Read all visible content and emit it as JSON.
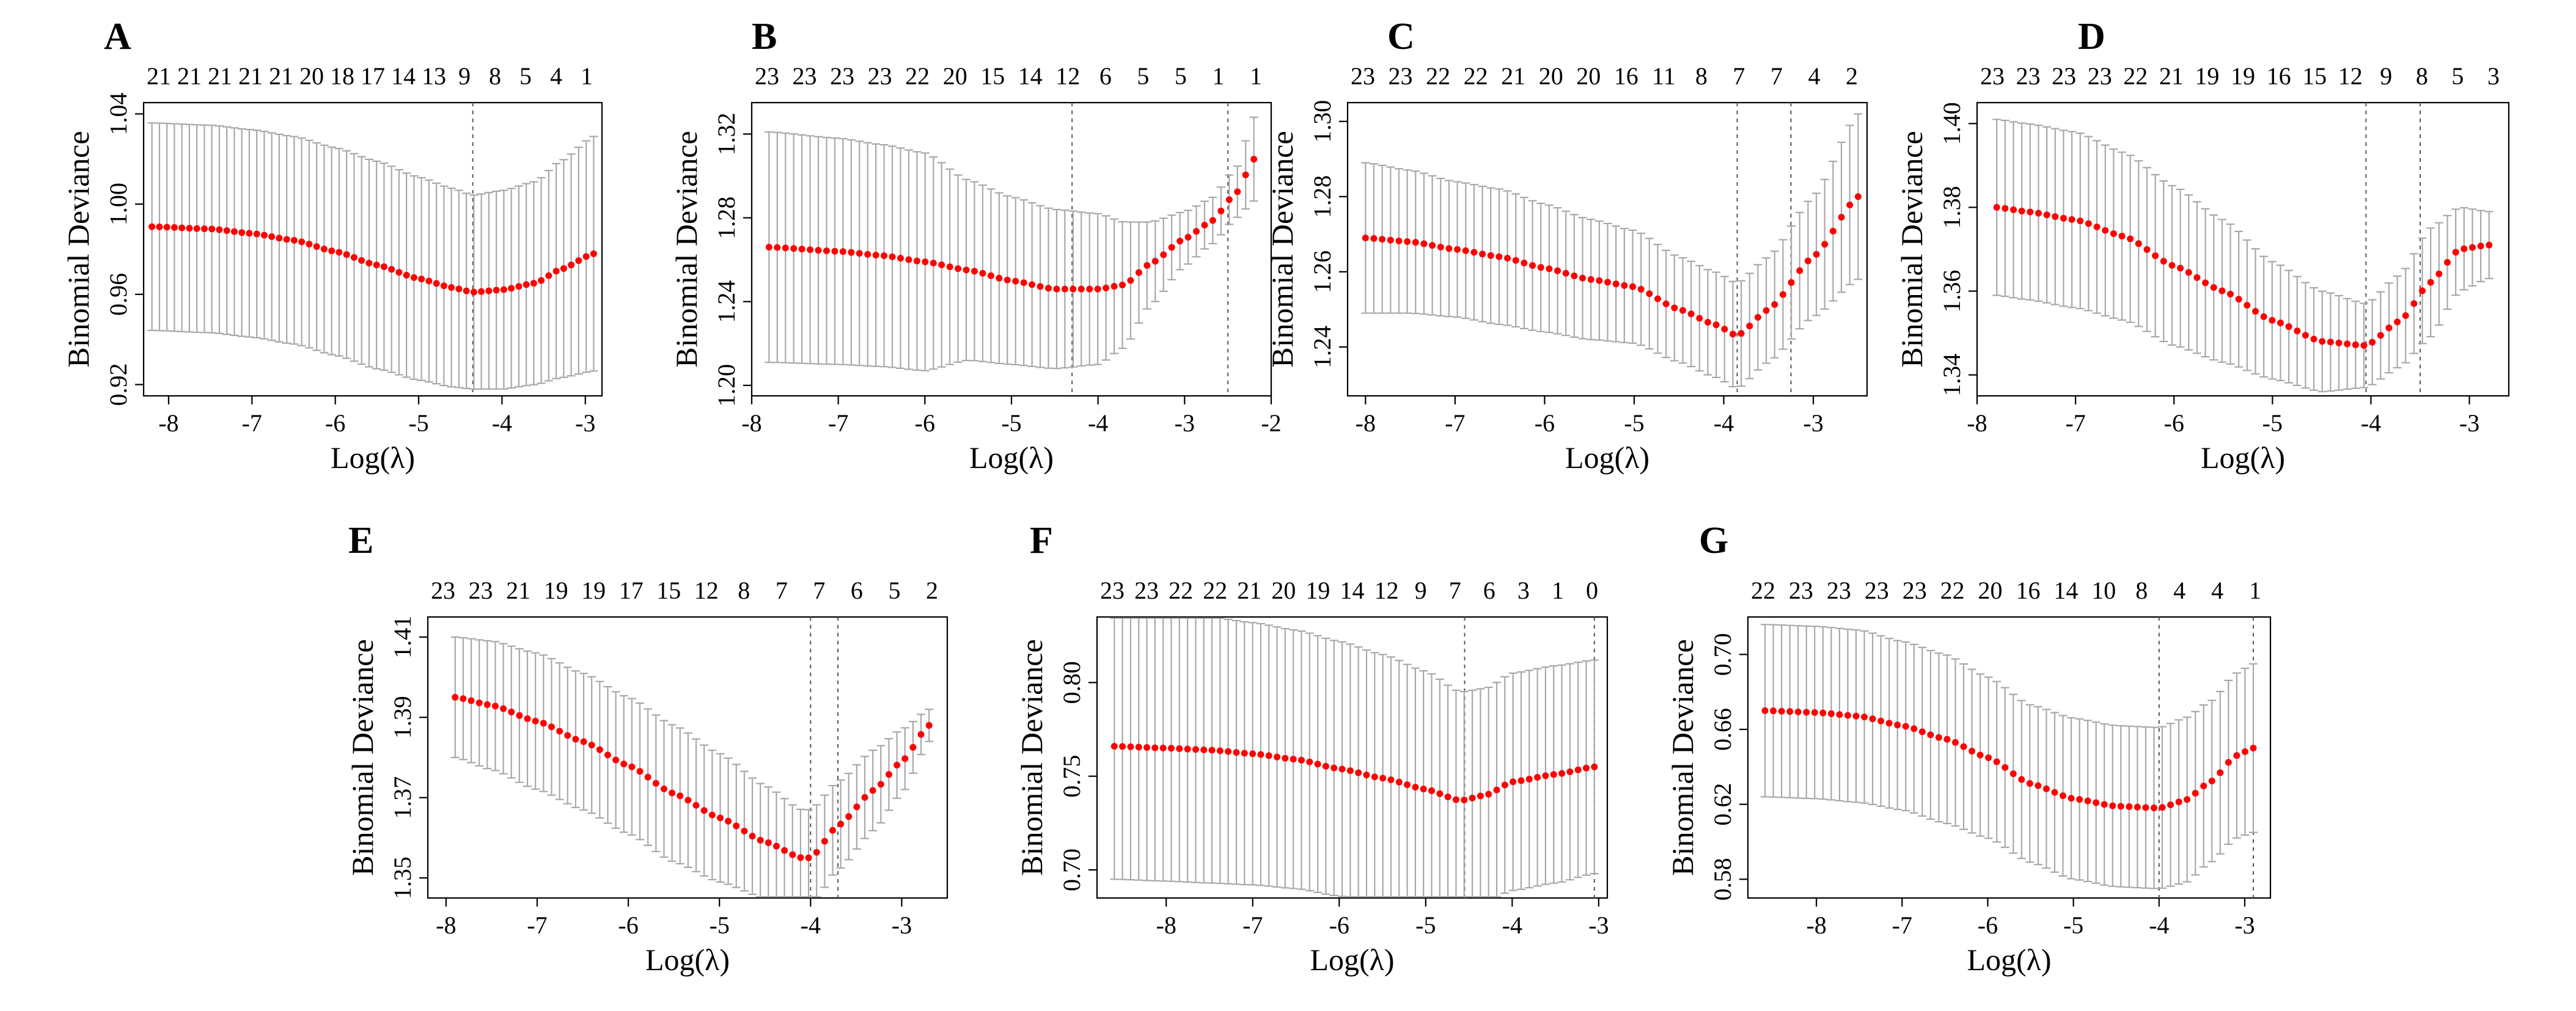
{
  "colors": {
    "points": "#ff0000",
    "error_bars": "#a8a8a8",
    "frame": "#000000"
  },
  "chart_data": [
    {
      "panel": "A",
      "type": "scatter",
      "xlabel": "Log(λ)",
      "ylabel": "Binomial Deviance",
      "xlim": [
        -8.3,
        -2.8
      ],
      "ylim": [
        0.915,
        1.045
      ],
      "xticks": [
        -8,
        -7,
        -6,
        -5,
        -4,
        -3
      ],
      "yticks": [
        0.92,
        0.96,
        1.0,
        1.04
      ],
      "ytick_labels": [
        "0.92",
        "0.96",
        "1.00",
        "1.04"
      ],
      "top_counts": [
        "21",
        "21",
        "21",
        "21",
        "21",
        "20",
        "18",
        "17",
        "14",
        "13",
        "9",
        "8",
        "5",
        "4",
        "1"
      ],
      "vlines": [
        -4.35
      ],
      "curve": {
        "x": [
          -8.2,
          -7.5,
          -7.0,
          -6.5,
          -6.0,
          -5.5,
          -5.0,
          -4.6,
          -4.35,
          -4.0,
          -3.6,
          -3.3,
          -2.9
        ],
        "y": [
          0.99,
          0.989,
          0.987,
          0.984,
          0.979,
          0.973,
          0.967,
          0.963,
          0.961,
          0.962,
          0.965,
          0.971,
          0.978
        ],
        "se": [
          0.046,
          0.046,
          0.046,
          0.046,
          0.046,
          0.046,
          0.045,
          0.044,
          0.043,
          0.044,
          0.045,
          0.048,
          0.052
        ]
      }
    },
    {
      "panel": "B",
      "type": "scatter",
      "xlabel": "Log(λ)",
      "ylabel": "Binomial Deviance",
      "xlim": [
        -8.0,
        -2.0
      ],
      "ylim": [
        1.195,
        1.335
      ],
      "xticks": [
        -8,
        -7,
        -6,
        -5,
        -4,
        -3,
        -2
      ],
      "yticks": [
        1.2,
        1.24,
        1.28,
        1.32
      ],
      "ytick_labels": [
        "1.20",
        "1.24",
        "1.28",
        "1.32"
      ],
      "top_counts": [
        "23",
        "23",
        "23",
        "23",
        "22",
        "20",
        "15",
        "14",
        "12",
        "6",
        "5",
        "5",
        "1",
        "1"
      ],
      "vlines": [
        -4.3,
        -2.5
      ],
      "curve": {
        "x": [
          -7.8,
          -7.0,
          -6.5,
          -6.0,
          -5.5,
          -5.0,
          -4.5,
          -4.0,
          -3.7,
          -3.4,
          -3.0,
          -2.7,
          -2.4,
          -2.2
        ],
        "y": [
          1.266,
          1.264,
          1.262,
          1.259,
          1.255,
          1.25,
          1.246,
          1.246,
          1.248,
          1.258,
          1.27,
          1.278,
          1.292,
          1.308
        ],
        "se": [
          0.055,
          0.054,
          0.053,
          0.052,
          0.043,
          0.04,
          0.038,
          0.036,
          0.03,
          0.02,
          0.013,
          0.011,
          0.012,
          0.02
        ]
      }
    },
    {
      "panel": "C",
      "type": "scatter",
      "xlabel": "Log(λ)",
      "ylabel": "Binomial Deviance",
      "xlim": [
        -8.2,
        -2.4
      ],
      "ylim": [
        1.227,
        1.305
      ],
      "xticks": [
        -8,
        -7,
        -6,
        -5,
        -4,
        -3
      ],
      "yticks": [
        1.24,
        1.26,
        1.28,
        1.3
      ],
      "ytick_labels": [
        "1.24",
        "1.26",
        "1.28",
        "1.30"
      ],
      "top_counts": [
        "23",
        "23",
        "22",
        "22",
        "21",
        "20",
        "20",
        "16",
        "11",
        "8",
        "7",
        "7",
        "4",
        "2"
      ],
      "vlines": [
        -3.85,
        -3.25
      ],
      "curve": {
        "x": [
          -8.0,
          -7.5,
          -7.0,
          -6.5,
          -6.0,
          -5.5,
          -5.0,
          -4.5,
          -4.1,
          -3.85,
          -3.5,
          -3.0,
          -2.5
        ],
        "y": [
          1.269,
          1.268,
          1.266,
          1.264,
          1.261,
          1.258,
          1.256,
          1.25,
          1.246,
          1.243,
          1.25,
          1.264,
          1.28
        ],
        "se": [
          0.02,
          0.019,
          0.018,
          0.018,
          0.017,
          0.016,
          0.015,
          0.014,
          0.014,
          0.014,
          0.014,
          0.016,
          0.022
        ]
      }
    },
    {
      "panel": "D",
      "type": "scatter",
      "xlabel": "Log(λ)",
      "ylabel": "Binomial Deviance",
      "xlim": [
        -8.0,
        -2.6
      ],
      "ylim": [
        1.335,
        1.405
      ],
      "xticks": [
        -8,
        -7,
        -6,
        -5,
        -4,
        -3
      ],
      "yticks": [
        1.34,
        1.36,
        1.38,
        1.4
      ],
      "ytick_labels": [
        "1.34",
        "1.36",
        "1.38",
        "1.40"
      ],
      "top_counts": [
        "23",
        "23",
        "23",
        "23",
        "22",
        "21",
        "19",
        "19",
        "16",
        "15",
        "12",
        "9",
        "8",
        "5",
        "3"
      ],
      "vlines": [
        -4.05,
        -3.5
      ],
      "curve": {
        "x": [
          -7.8,
          -7.5,
          -7.0,
          -6.5,
          -6.0,
          -5.5,
          -5.0,
          -4.5,
          -4.05,
          -3.7,
          -3.4,
          -3.1,
          -2.8
        ],
        "y": [
          1.38,
          1.379,
          1.377,
          1.373,
          1.366,
          1.36,
          1.353,
          1.348,
          1.347,
          1.353,
          1.362,
          1.37,
          1.371
        ],
        "se": [
          0.021,
          0.021,
          0.021,
          0.02,
          0.019,
          0.017,
          0.014,
          0.012,
          0.01,
          0.011,
          0.013,
          0.01,
          0.008
        ]
      }
    },
    {
      "panel": "E",
      "type": "scatter",
      "xlabel": "Log(λ)",
      "ylabel": "Binomial Deviance",
      "xlim": [
        -8.2,
        -2.5
      ],
      "ylim": [
        1.345,
        1.415
      ],
      "xticks": [
        -8,
        -7,
        -6,
        -5,
        -4,
        -3
      ],
      "yticks": [
        1.35,
        1.37,
        1.39,
        1.41
      ],
      "ytick_labels": [
        "1.35",
        "1.37",
        "1.39",
        "1.41"
      ],
      "top_counts": [
        "23",
        "23",
        "21",
        "19",
        "19",
        "17",
        "15",
        "12",
        "8",
        "7",
        "7",
        "6",
        "5",
        "2"
      ],
      "vlines": [
        -4.0,
        -3.7
      ],
      "curve": {
        "x": [
          -7.9,
          -7.5,
          -7.0,
          -6.5,
          -6.0,
          -5.5,
          -5.0,
          -4.5,
          -4.1,
          -4.0,
          -3.7,
          -3.3,
          -3.0,
          -2.7
        ],
        "y": [
          1.395,
          1.393,
          1.389,
          1.384,
          1.378,
          1.371,
          1.365,
          1.359,
          1.355,
          1.355,
          1.363,
          1.372,
          1.379,
          1.388
        ],
        "se": [
          0.015,
          0.016,
          0.017,
          0.017,
          0.017,
          0.017,
          0.016,
          0.014,
          0.012,
          0.012,
          0.011,
          0.01,
          0.008,
          0.004
        ]
      }
    },
    {
      "panel": "F",
      "type": "scatter",
      "xlabel": "Log(λ)",
      "ylabel": "Binomial Deviance",
      "xlim": [
        -8.8,
        -2.9
      ],
      "ylim": [
        0.685,
        0.835
      ],
      "xticks": [
        -8,
        -7,
        -6,
        -5,
        -4,
        -3
      ],
      "yticks": [
        0.7,
        0.75,
        0.8
      ],
      "ytick_labels": [
        "0.70",
        "0.75",
        "0.80"
      ],
      "top_counts": [
        "23",
        "23",
        "22",
        "22",
        "21",
        "20",
        "19",
        "14",
        "12",
        "9",
        "7",
        "6",
        "3",
        "1",
        "0"
      ],
      "vlines": [
        -4.55,
        -3.05
      ],
      "curve": {
        "x": [
          -8.6,
          -8.0,
          -7.5,
          -7.0,
          -6.5,
          -6.0,
          -5.5,
          -5.0,
          -4.6,
          -4.3,
          -4.0,
          -3.5,
          -3.05
        ],
        "y": [
          0.766,
          0.765,
          0.764,
          0.762,
          0.759,
          0.754,
          0.749,
          0.743,
          0.737,
          0.74,
          0.747,
          0.751,
          0.755
        ],
        "se": [
          0.071,
          0.071,
          0.071,
          0.07,
          0.069,
          0.068,
          0.066,
          0.063,
          0.058,
          0.057,
          0.058,
          0.058,
          0.057
        ]
      }
    },
    {
      "panel": "G",
      "type": "scatter",
      "xlabel": "Log(λ)",
      "ylabel": "Binomial Deviance",
      "xlim": [
        -8.8,
        -2.7
      ],
      "ylim": [
        0.57,
        0.72
      ],
      "xticks": [
        -8,
        -7,
        -6,
        -5,
        -4,
        -3
      ],
      "yticks": [
        0.58,
        0.62,
        0.66,
        0.7
      ],
      "ytick_labels": [
        "0.58",
        "0.62",
        "0.66",
        "0.70"
      ],
      "top_counts": [
        "22",
        "23",
        "23",
        "23",
        "23",
        "22",
        "20",
        "16",
        "14",
        "10",
        "8",
        "4",
        "4",
        "1"
      ],
      "vlines": [
        -4.0,
        -2.9
      ],
      "curve": {
        "x": [
          -8.6,
          -8.0,
          -7.5,
          -7.0,
          -6.5,
          -6.0,
          -5.5,
          -5.0,
          -4.5,
          -4.0,
          -3.7,
          -3.4,
          -3.1,
          -2.9
        ],
        "y": [
          0.67,
          0.669,
          0.667,
          0.662,
          0.655,
          0.645,
          0.631,
          0.623,
          0.619,
          0.618,
          0.622,
          0.632,
          0.646,
          0.65
        ],
        "se": [
          0.046,
          0.046,
          0.046,
          0.045,
          0.045,
          0.043,
          0.042,
          0.043,
          0.043,
          0.043,
          0.044,
          0.043,
          0.044,
          0.045
        ]
      }
    }
  ]
}
